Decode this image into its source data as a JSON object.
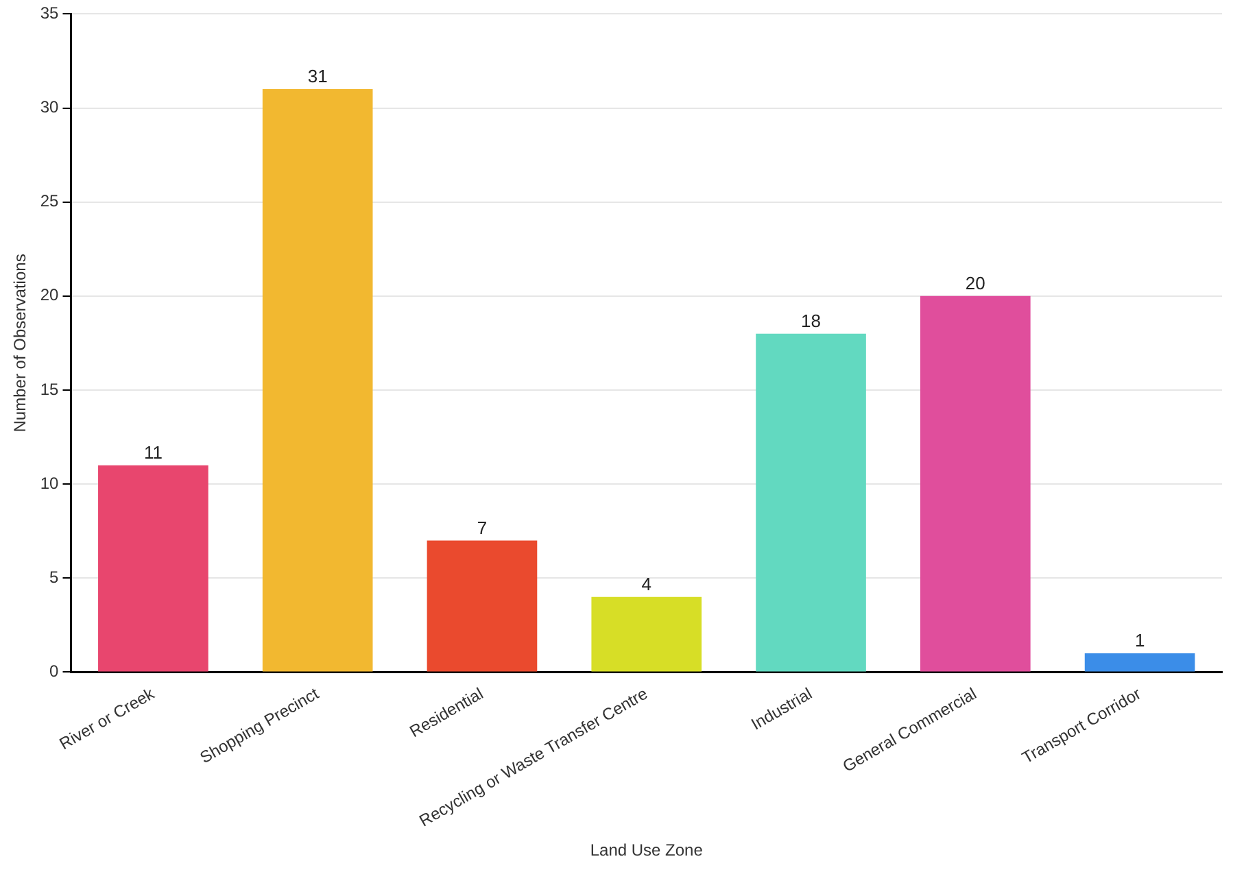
{
  "chart_data": {
    "type": "bar",
    "xlabel": "Land Use Zone",
    "ylabel": "Number of Observations",
    "categories": [
      "River or Creek",
      "Shopping Precinct",
      "Residential",
      "Recycling or Waste Transfer Centre",
      "Industrial",
      "General Commercial",
      "Transport Corridor"
    ],
    "values": [
      11,
      31,
      7,
      4,
      18,
      20,
      1
    ],
    "colors": [
      "#e8466e",
      "#f2b830",
      "#ea4a2e",
      "#d7de26",
      "#62d9c0",
      "#e04e9c",
      "#3b8de8"
    ],
    "ylim": [
      0,
      35
    ],
    "yticks": [
      0,
      5,
      10,
      15,
      20,
      25,
      30,
      35
    ],
    "grid": "y",
    "data_labels": true,
    "legend": false
  }
}
